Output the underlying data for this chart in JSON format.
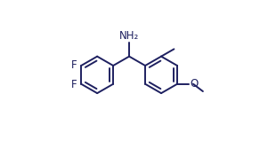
{
  "background_color": "#ffffff",
  "line_color": "#1e2060",
  "line_width": 1.4,
  "font_size": 8.5,
  "label_color": "#1e2060",
  "nh2_label": "NH₂",
  "f_label": "F",
  "o_label": "O",
  "figsize": [
    2.92,
    1.76
  ],
  "dpi": 100
}
